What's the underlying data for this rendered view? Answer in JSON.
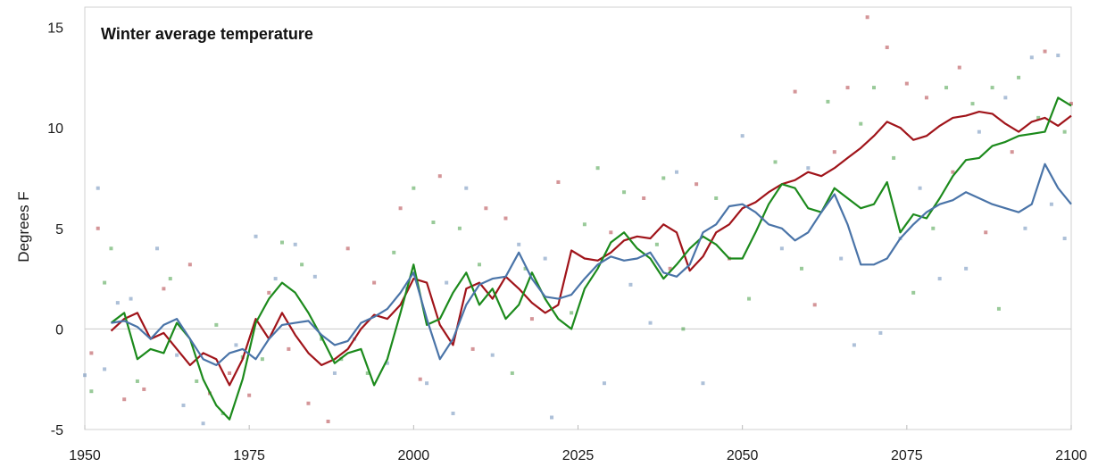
{
  "chart_data": {
    "type": "line",
    "title": "Winter average temperature",
    "xlabel": "",
    "ylabel": "Degrees F",
    "xlim": [
      1950,
      2100
    ],
    "ylim": [
      -5,
      16
    ],
    "x_ticks": [
      1950,
      1975,
      2000,
      2025,
      2050,
      2075,
      2100
    ],
    "y_ticks": [
      -5,
      0,
      5,
      10,
      15
    ],
    "grid": false,
    "legend": "none",
    "series": [
      {
        "color": "#a0141a",
        "x": [
          1954,
          1956,
          1958,
          1960,
          1962,
          1964,
          1966,
          1968,
          1970,
          1972,
          1974,
          1976,
          1978,
          1980,
          1982,
          1984,
          1986,
          1988,
          1990,
          1992,
          1994,
          1996,
          1998,
          2000,
          2002,
          2004,
          2006,
          2008,
          2010,
          2012,
          2014,
          2016,
          2018,
          2020,
          2022,
          2024,
          2026,
          2028,
          2030,
          2032,
          2034,
          2036,
          2038,
          2040,
          2042,
          2044,
          2046,
          2048,
          2050,
          2052,
          2054,
          2056,
          2058,
          2060,
          2062,
          2064,
          2066,
          2068,
          2070,
          2072,
          2074,
          2076,
          2078,
          2080,
          2082,
          2084,
          2086,
          2088,
          2090,
          2092,
          2094,
          2096,
          2098,
          2100
        ],
        "y": [
          -0.1,
          0.5,
          0.8,
          -0.5,
          -0.2,
          -1.0,
          -1.8,
          -1.2,
          -1.5,
          -2.8,
          -1.5,
          0.5,
          -0.5,
          0.8,
          -0.3,
          -1.2,
          -1.8,
          -1.5,
          -1.0,
          0.0,
          0.7,
          0.5,
          1.2,
          2.5,
          2.3,
          0.2,
          -0.8,
          2.0,
          2.3,
          1.5,
          2.6,
          2.0,
          1.3,
          0.8,
          1.2,
          3.9,
          3.5,
          3.4,
          3.8,
          4.4,
          4.6,
          4.5,
          5.2,
          4.8,
          2.9,
          3.6,
          4.8,
          5.2,
          6.0,
          6.3,
          6.8,
          7.2,
          7.4,
          7.8,
          7.6,
          8.0,
          8.5,
          9.0,
          9.6,
          10.3,
          10.0,
          9.4,
          9.6,
          10.1,
          10.5,
          10.6,
          10.8,
          10.7,
          10.2,
          9.8,
          10.3,
          10.5,
          10.1,
          10.6
        ]
      },
      {
        "color": "#1c8a1c",
        "x": [
          1954,
          1956,
          1958,
          1960,
          1962,
          1964,
          1966,
          1968,
          1970,
          1972,
          1974,
          1976,
          1978,
          1980,
          1982,
          1984,
          1986,
          1988,
          1990,
          1992,
          1994,
          1996,
          1998,
          2000,
          2002,
          2004,
          2006,
          2008,
          2010,
          2012,
          2014,
          2016,
          2018,
          2020,
          2022,
          2024,
          2026,
          2028,
          2030,
          2032,
          2034,
          2036,
          2038,
          2040,
          2042,
          2044,
          2046,
          2048,
          2050,
          2052,
          2054,
          2056,
          2058,
          2060,
          2062,
          2064,
          2066,
          2068,
          2070,
          2072,
          2074,
          2076,
          2078,
          2080,
          2082,
          2084,
          2086,
          2088,
          2090,
          2092,
          2094,
          2096,
          2098,
          2100
        ],
        "y": [
          0.3,
          0.8,
          -1.5,
          -1.0,
          -1.2,
          0.3,
          -0.5,
          -2.5,
          -3.8,
          -4.5,
          -2.5,
          0.3,
          1.5,
          2.3,
          1.8,
          0.8,
          -0.4,
          -1.7,
          -1.2,
          -1.0,
          -2.8,
          -1.5,
          0.8,
          3.2,
          0.2,
          0.5,
          1.8,
          2.8,
          1.2,
          2.0,
          0.5,
          1.2,
          2.8,
          1.5,
          0.5,
          0.0,
          2.0,
          3.0,
          4.3,
          4.8,
          4.0,
          3.5,
          2.5,
          3.2,
          4.0,
          4.6,
          4.2,
          3.5,
          3.5,
          4.8,
          6.2,
          7.2,
          7.0,
          6.0,
          5.8,
          7.0,
          6.5,
          6.0,
          6.2,
          7.3,
          4.8,
          5.7,
          5.5,
          6.5,
          7.6,
          8.4,
          8.5,
          9.1,
          9.3,
          9.6,
          9.7,
          9.8,
          11.5,
          11.1
        ]
      },
      {
        "color": "#4a74a8",
        "x": [
          1954,
          1956,
          1958,
          1960,
          1962,
          1964,
          1966,
          1968,
          1970,
          1972,
          1974,
          1976,
          1978,
          1980,
          1982,
          1984,
          1986,
          1988,
          1990,
          1992,
          1994,
          1996,
          1998,
          2000,
          2002,
          2004,
          2006,
          2008,
          2010,
          2012,
          2014,
          2016,
          2018,
          2020,
          2022,
          2024,
          2026,
          2028,
          2030,
          2032,
          2034,
          2036,
          2038,
          2040,
          2042,
          2044,
          2046,
          2048,
          2050,
          2052,
          2054,
          2056,
          2058,
          2060,
          2062,
          2064,
          2066,
          2068,
          2070,
          2072,
          2074,
          2076,
          2078,
          2080,
          2082,
          2084,
          2086,
          2088,
          2090,
          2092,
          2094,
          2096,
          2098,
          2100
        ],
        "y": [
          0.3,
          0.4,
          0.1,
          -0.5,
          0.2,
          0.5,
          -0.5,
          -1.5,
          -1.8,
          -1.2,
          -1.0,
          -1.5,
          -0.5,
          0.2,
          0.3,
          0.4,
          -0.3,
          -0.8,
          -0.6,
          0.3,
          0.6,
          1.0,
          1.8,
          2.8,
          0.5,
          -1.5,
          -0.5,
          1.2,
          2.2,
          2.5,
          2.6,
          3.8,
          2.5,
          1.6,
          1.5,
          1.7,
          2.5,
          3.2,
          3.6,
          3.4,
          3.5,
          3.8,
          2.8,
          2.6,
          3.2,
          4.8,
          5.2,
          6.1,
          6.2,
          5.8,
          5.2,
          5.0,
          4.4,
          4.8,
          5.8,
          6.7,
          5.2,
          3.2,
          3.2,
          3.5,
          4.5,
          5.2,
          5.8,
          6.2,
          6.4,
          6.8,
          6.5,
          6.2,
          6.0,
          5.8,
          6.2,
          8.2,
          7.0,
          6.2
        ]
      }
    ]
  },
  "scatter": {
    "points": [
      {
        "x": 1950,
        "y": -2.3,
        "c": "#4a74a8"
      },
      {
        "x": 1951,
        "y": -1.2,
        "c": "#a0141a"
      },
      {
        "x": 1951,
        "y": -3.1,
        "c": "#1c8a1c"
      },
      {
        "x": 1952,
        "y": 7.0,
        "c": "#4a74a8"
      },
      {
        "x": 1952,
        "y": 5.0,
        "c": "#a0141a"
      },
      {
        "x": 1953,
        "y": 2.3,
        "c": "#1c8a1c"
      },
      {
        "x": 1953,
        "y": -2.0,
        "c": "#4a74a8"
      },
      {
        "x": 1954,
        "y": 4.0,
        "c": "#1c8a1c"
      },
      {
        "x": 1955,
        "y": 1.3,
        "c": "#4a74a8"
      },
      {
        "x": 1956,
        "y": -3.5,
        "c": "#a0141a"
      },
      {
        "x": 1957,
        "y": 1.5,
        "c": "#4a74a8"
      },
      {
        "x": 1958,
        "y": -2.6,
        "c": "#1c8a1c"
      },
      {
        "x": 1959,
        "y": -3.0,
        "c": "#a0141a"
      },
      {
        "x": 1961,
        "y": 4.0,
        "c": "#4a74a8"
      },
      {
        "x": 1962,
        "y": 2.0,
        "c": "#a0141a"
      },
      {
        "x": 1963,
        "y": 2.5,
        "c": "#1c8a1c"
      },
      {
        "x": 1964,
        "y": -1.3,
        "c": "#4a74a8"
      },
      {
        "x": 1965,
        "y": -3.8,
        "c": "#4a74a8"
      },
      {
        "x": 1966,
        "y": 3.2,
        "c": "#a0141a"
      },
      {
        "x": 1967,
        "y": -2.6,
        "c": "#1c8a1c"
      },
      {
        "x": 1968,
        "y": -4.7,
        "c": "#4a74a8"
      },
      {
        "x": 1969,
        "y": -3.2,
        "c": "#a0141a"
      },
      {
        "x": 1970,
        "y": 0.2,
        "c": "#1c8a1c"
      },
      {
        "x": 1971,
        "y": -4.2,
        "c": "#1c8a1c"
      },
      {
        "x": 1972,
        "y": -2.2,
        "c": "#a0141a"
      },
      {
        "x": 1973,
        "y": -0.8,
        "c": "#4a74a8"
      },
      {
        "x": 1974,
        "y": -1.4,
        "c": "#1c8a1c"
      },
      {
        "x": 1975,
        "y": -3.3,
        "c": "#a0141a"
      },
      {
        "x": 1976,
        "y": 4.6,
        "c": "#4a74a8"
      },
      {
        "x": 1977,
        "y": -1.5,
        "c": "#1c8a1c"
      },
      {
        "x": 1978,
        "y": 1.8,
        "c": "#a0141a"
      },
      {
        "x": 1979,
        "y": 2.5,
        "c": "#4a74a8"
      },
      {
        "x": 1980,
        "y": 4.3,
        "c": "#1c8a1c"
      },
      {
        "x": 1981,
        "y": -1.0,
        "c": "#a0141a"
      },
      {
        "x": 1982,
        "y": 4.2,
        "c": "#4a74a8"
      },
      {
        "x": 1983,
        "y": 3.2,
        "c": "#1c8a1c"
      },
      {
        "x": 1984,
        "y": -3.7,
        "c": "#a0141a"
      },
      {
        "x": 1985,
        "y": 2.6,
        "c": "#4a74a8"
      },
      {
        "x": 1986,
        "y": -0.5,
        "c": "#1c8a1c"
      },
      {
        "x": 1987,
        "y": -4.6,
        "c": "#a0141a"
      },
      {
        "x": 1988,
        "y": -2.2,
        "c": "#4a74a8"
      },
      {
        "x": 1989,
        "y": -1.5,
        "c": "#1c8a1c"
      },
      {
        "x": 1990,
        "y": 4.0,
        "c": "#a0141a"
      },
      {
        "x": 1991,
        "y": -0.5,
        "c": "#4a74a8"
      },
      {
        "x": 1993,
        "y": -2.2,
        "c": "#1c8a1c"
      },
      {
        "x": 1994,
        "y": 2.3,
        "c": "#a0141a"
      },
      {
        "x": 1996,
        "y": -1.7,
        "c": "#4a74a8"
      },
      {
        "x": 1997,
        "y": 3.8,
        "c": "#1c8a1c"
      },
      {
        "x": 1998,
        "y": 6.0,
        "c": "#a0141a"
      },
      {
        "x": 1999,
        "y": 2.0,
        "c": "#4a74a8"
      },
      {
        "x": 2000,
        "y": 7.0,
        "c": "#1c8a1c"
      },
      {
        "x": 2001,
        "y": -2.5,
        "c": "#a0141a"
      },
      {
        "x": 2002,
        "y": -2.7,
        "c": "#4a74a8"
      },
      {
        "x": 2003,
        "y": 5.3,
        "c": "#1c8a1c"
      },
      {
        "x": 2004,
        "y": 7.6,
        "c": "#a0141a"
      },
      {
        "x": 2005,
        "y": 2.3,
        "c": "#4a74a8"
      },
      {
        "x": 2006,
        "y": -4.2,
        "c": "#4a74a8"
      },
      {
        "x": 2007,
        "y": 5.0,
        "c": "#1c8a1c"
      },
      {
        "x": 2008,
        "y": 7.0,
        "c": "#4a74a8"
      },
      {
        "x": 2009,
        "y": -1.0,
        "c": "#a0141a"
      },
      {
        "x": 2010,
        "y": 3.2,
        "c": "#1c8a1c"
      },
      {
        "x": 2011,
        "y": 6.0,
        "c": "#a0141a"
      },
      {
        "x": 2012,
        "y": -1.3,
        "c": "#4a74a8"
      },
      {
        "x": 2014,
        "y": 5.5,
        "c": "#a0141a"
      },
      {
        "x": 2015,
        "y": -2.2,
        "c": "#1c8a1c"
      },
      {
        "x": 2016,
        "y": 4.2,
        "c": "#4a74a8"
      },
      {
        "x": 2017,
        "y": 3.0,
        "c": "#1c8a1c"
      },
      {
        "x": 2018,
        "y": 0.5,
        "c": "#a0141a"
      },
      {
        "x": 2020,
        "y": 3.5,
        "c": "#4a74a8"
      },
      {
        "x": 2021,
        "y": -4.4,
        "c": "#4a74a8"
      },
      {
        "x": 2022,
        "y": 7.3,
        "c": "#a0141a"
      },
      {
        "x": 2024,
        "y": 0.8,
        "c": "#1c8a1c"
      },
      {
        "x": 2026,
        "y": 5.2,
        "c": "#1c8a1c"
      },
      {
        "x": 2028,
        "y": 8.0,
        "c": "#1c8a1c"
      },
      {
        "x": 2029,
        "y": -2.7,
        "c": "#4a74a8"
      },
      {
        "x": 2030,
        "y": 4.8,
        "c": "#a0141a"
      },
      {
        "x": 2032,
        "y": 6.8,
        "c": "#1c8a1c"
      },
      {
        "x": 2033,
        "y": 2.2,
        "c": "#4a74a8"
      },
      {
        "x": 2035,
        "y": 6.5,
        "c": "#a0141a"
      },
      {
        "x": 2036,
        "y": 0.3,
        "c": "#4a74a8"
      },
      {
        "x": 2037,
        "y": 4.2,
        "c": "#1c8a1c"
      },
      {
        "x": 2038,
        "y": 7.5,
        "c": "#1c8a1c"
      },
      {
        "x": 2039,
        "y": 3.0,
        "c": "#a0141a"
      },
      {
        "x": 2040,
        "y": 7.8,
        "c": "#4a74a8"
      },
      {
        "x": 2041,
        "y": 0.0,
        "c": "#1c8a1c"
      },
      {
        "x": 2043,
        "y": 7.2,
        "c": "#a0141a"
      },
      {
        "x": 2044,
        "y": -2.7,
        "c": "#4a74a8"
      },
      {
        "x": 2046,
        "y": 6.5,
        "c": "#1c8a1c"
      },
      {
        "x": 2048,
        "y": 3.5,
        "c": "#a0141a"
      },
      {
        "x": 2050,
        "y": 9.6,
        "c": "#4a74a8"
      },
      {
        "x": 2051,
        "y": 1.5,
        "c": "#1c8a1c"
      },
      {
        "x": 2053,
        "y": 5.5,
        "c": "#a0141a"
      },
      {
        "x": 2055,
        "y": 8.3,
        "c": "#1c8a1c"
      },
      {
        "x": 2056,
        "y": 4.0,
        "c": "#4a74a8"
      },
      {
        "x": 2058,
        "y": 11.8,
        "c": "#a0141a"
      },
      {
        "x": 2059,
        "y": 3.0,
        "c": "#1c8a1c"
      },
      {
        "x": 2060,
        "y": 8.0,
        "c": "#4a74a8"
      },
      {
        "x": 2061,
        "y": 1.2,
        "c": "#a0141a"
      },
      {
        "x": 2063,
        "y": 11.3,
        "c": "#1c8a1c"
      },
      {
        "x": 2064,
        "y": 8.8,
        "c": "#a0141a"
      },
      {
        "x": 2065,
        "y": 3.5,
        "c": "#4a74a8"
      },
      {
        "x": 2066,
        "y": 12.0,
        "c": "#a0141a"
      },
      {
        "x": 2067,
        "y": -0.8,
        "c": "#4a74a8"
      },
      {
        "x": 2068,
        "y": 10.2,
        "c": "#1c8a1c"
      },
      {
        "x": 2069,
        "y": 15.5,
        "c": "#a0141a"
      },
      {
        "x": 2070,
        "y": 12.0,
        "c": "#1c8a1c"
      },
      {
        "x": 2071,
        "y": -0.2,
        "c": "#4a74a8"
      },
      {
        "x": 2072,
        "y": 14.0,
        "c": "#a0141a"
      },
      {
        "x": 2073,
        "y": 8.5,
        "c": "#1c8a1c"
      },
      {
        "x": 2074,
        "y": 4.5,
        "c": "#4a74a8"
      },
      {
        "x": 2075,
        "y": 12.2,
        "c": "#a0141a"
      },
      {
        "x": 2076,
        "y": 1.8,
        "c": "#1c8a1c"
      },
      {
        "x": 2077,
        "y": 7.0,
        "c": "#4a74a8"
      },
      {
        "x": 2078,
        "y": 11.5,
        "c": "#a0141a"
      },
      {
        "x": 2079,
        "y": 5.0,
        "c": "#1c8a1c"
      },
      {
        "x": 2080,
        "y": 2.5,
        "c": "#4a74a8"
      },
      {
        "x": 2081,
        "y": 12.0,
        "c": "#1c8a1c"
      },
      {
        "x": 2082,
        "y": 7.8,
        "c": "#a0141a"
      },
      {
        "x": 2083,
        "y": 13.0,
        "c": "#a0141a"
      },
      {
        "x": 2084,
        "y": 3.0,
        "c": "#4a74a8"
      },
      {
        "x": 2085,
        "y": 11.2,
        "c": "#1c8a1c"
      },
      {
        "x": 2086,
        "y": 9.8,
        "c": "#4a74a8"
      },
      {
        "x": 2087,
        "y": 4.8,
        "c": "#a0141a"
      },
      {
        "x": 2088,
        "y": 12.0,
        "c": "#1c8a1c"
      },
      {
        "x": 2089,
        "y": 1.0,
        "c": "#1c8a1c"
      },
      {
        "x": 2090,
        "y": 11.5,
        "c": "#4a74a8"
      },
      {
        "x": 2091,
        "y": 8.8,
        "c": "#a0141a"
      },
      {
        "x": 2092,
        "y": 12.5,
        "c": "#1c8a1c"
      },
      {
        "x": 2093,
        "y": 5.0,
        "c": "#4a74a8"
      },
      {
        "x": 2094,
        "y": 13.5,
        "c": "#4a74a8"
      },
      {
        "x": 2095,
        "y": 10.5,
        "c": "#1c8a1c"
      },
      {
        "x": 2096,
        "y": 13.8,
        "c": "#a0141a"
      },
      {
        "x": 2097,
        "y": 6.2,
        "c": "#4a74a8"
      },
      {
        "x": 2098,
        "y": 13.6,
        "c": "#4a74a8"
      },
      {
        "x": 2099,
        "y": 9.8,
        "c": "#1c8a1c"
      },
      {
        "x": 2099,
        "y": 4.5,
        "c": "#4a74a8"
      },
      {
        "x": 2100,
        "y": 11.2,
        "c": "#a0141a"
      }
    ]
  }
}
